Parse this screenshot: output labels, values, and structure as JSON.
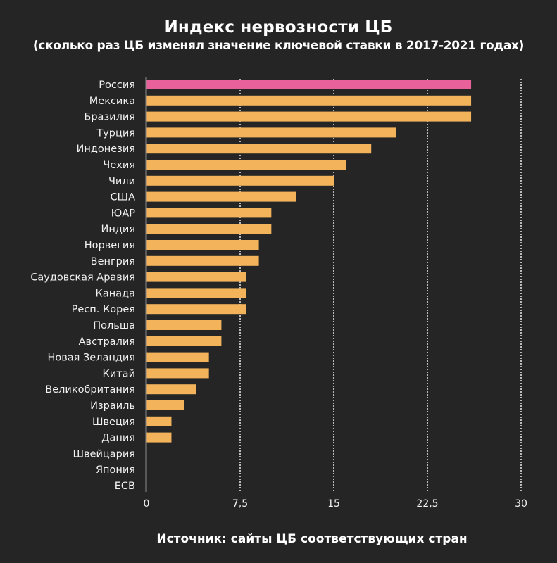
{
  "header": {
    "title": "Индекс нервозности ЦБ",
    "subtitle": "(сколько раз ЦБ изменял значение ключевой ставки в 2017-2021 годах)"
  },
  "footer": {
    "source": "Источник: сайты ЦБ соответствующих стран"
  },
  "colors": {
    "background": "#252525",
    "highlight": "#E9619B",
    "bar": "#F3B35B",
    "axis": "#8a8a8a",
    "grid": "#e0e0e0"
  },
  "chart_data": {
    "type": "bar",
    "orientation": "horizontal",
    "title": "Индекс нервозности ЦБ",
    "subtitle": "(сколько раз ЦБ изменял значение ключевой ставки в 2017-2021 годах)",
    "xlabel": "",
    "ylabel": "",
    "xlim": [
      0,
      30
    ],
    "ticks": [
      0,
      7.5,
      15,
      22.5,
      30
    ],
    "tick_labels": [
      "0",
      "7,5",
      "15",
      "22,5",
      "30"
    ],
    "grid": "vertical dotted",
    "highlighted_category": "Россия",
    "categories": [
      "Россия",
      "Мексика",
      "Бразилия",
      "Турция",
      "Индонезия",
      "Чехия",
      "Чили",
      "США",
      "ЮАР",
      "Индия",
      "Норвегия",
      "Венгрия",
      "Саудовская Аравия",
      "Канада",
      "Респ. Корея",
      "Польша",
      "Австралия",
      "Новая Зеландия",
      "Китай",
      "Великобритания",
      "Израиль",
      "Швеция",
      "Дания",
      "Швейцария",
      "Япония",
      "ECB"
    ],
    "values": [
      26,
      26,
      26,
      20,
      18,
      16,
      15,
      12,
      10,
      10,
      9,
      9,
      8,
      8,
      8,
      6,
      6,
      5,
      5,
      4,
      3,
      2,
      2,
      0,
      0,
      0
    ]
  }
}
